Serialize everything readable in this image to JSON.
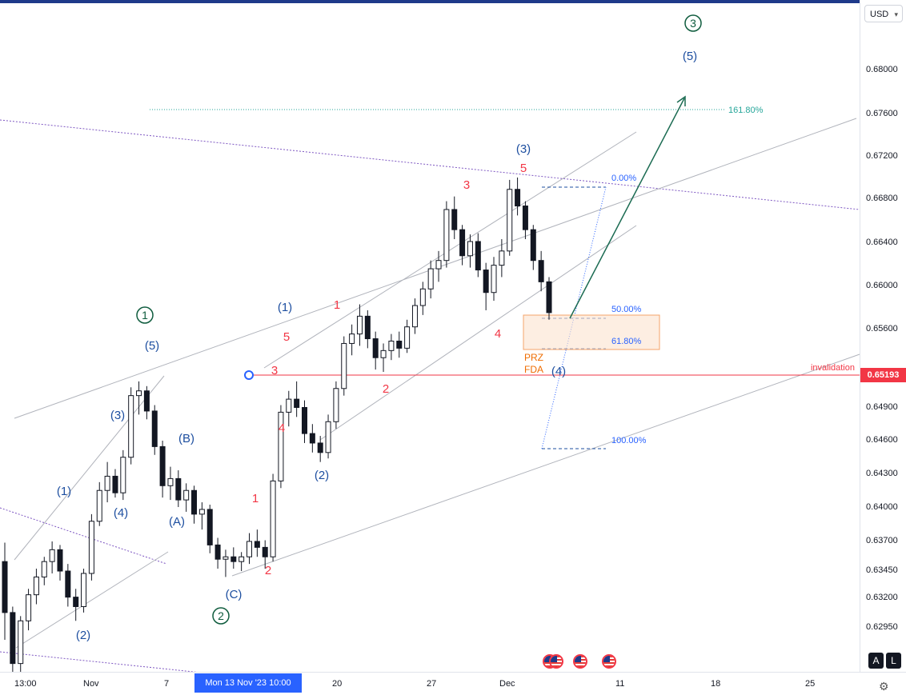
{
  "header": {
    "currency": "USD"
  },
  "price_axis": {
    "ticks": [
      "0.68000",
      "0.67600",
      "0.67200",
      "0.66800",
      "0.66400",
      "0.66000",
      "0.65600",
      "0.64900",
      "0.64600",
      "0.64300",
      "0.64000",
      "0.63700",
      "0.63450",
      "0.63200",
      "0.62950"
    ],
    "current_price": "0.65193"
  },
  "time_axis": {
    "ticks": [
      "13:00",
      "Nov",
      "7",
      "20",
      "27",
      "Dec",
      "11",
      "18",
      "25"
    ],
    "crosshair_label": "Mon 13 Nov '23   10:00"
  },
  "buttons": {
    "auto": "A",
    "log": "L"
  },
  "colors": {
    "up": "#131722",
    "down": "#131722",
    "wave_blue": "#1e4fa0",
    "wave_red": "#f23645",
    "wave_green": "#0f5c3e",
    "invalidation": "#f23645",
    "fib": "#2962ff",
    "prz": "#ef6c00"
  },
  "annotations": {
    "fib_161": "161.80%",
    "fib_0": "0.00%",
    "fib_50": "50.00%",
    "fib_618": "61.80%",
    "fib_100": "100.00%",
    "prz": "PRZ",
    "fda": "FDA",
    "invalidation": "invalidation"
  },
  "waves": {
    "c1": "1",
    "c2": "2",
    "c3": "3",
    "b5_top": "(5)",
    "b3_top": "(3)",
    "b4_main": "(4)",
    "b1_main": "(1)",
    "b2_main": "(2)",
    "b5_left": "(5)",
    "b3_left": "(3)",
    "b4_left": "(4)",
    "b1_left": "(1)",
    "b2_left": "(2)",
    "bB": "(B)",
    "bA": "(A)",
    "bC": "(C)",
    "r1a": "1",
    "r2a": "2",
    "r3a": "3",
    "r4a": "4",
    "r5a": "5",
    "r1b": "1",
    "r2b": "2",
    "r3b": "3",
    "r4b": "4",
    "r5b": "5"
  },
  "chart_data": {
    "type": "candlestick",
    "title": "",
    "ylim": [
      0.6275,
      0.6835
    ],
    "x_ticks": [
      "13:00",
      "Nov",
      "7",
      "20",
      "27",
      "Dec",
      "11",
      "18",
      "25"
    ],
    "close_path": [
      [
        0.6368,
        0.6384,
        0.6302,
        0.6325
      ],
      [
        0.6325,
        0.633,
        0.6264,
        0.6282
      ],
      [
        0.6282,
        0.6322,
        0.6272,
        0.6318
      ],
      [
        0.6318,
        0.6345,
        0.631,
        0.634
      ],
      [
        0.634,
        0.6362,
        0.6332,
        0.6355
      ],
      [
        0.6355,
        0.6372,
        0.6348,
        0.6368
      ],
      [
        0.6368,
        0.6385,
        0.6358,
        0.6378
      ],
      [
        0.6378,
        0.6382,
        0.6352,
        0.636
      ],
      [
        0.636,
        0.6366,
        0.633,
        0.6338
      ],
      [
        0.6338,
        0.6345,
        0.6318,
        0.633
      ],
      [
        0.633,
        0.6362,
        0.6325,
        0.6358
      ],
      [
        0.6358,
        0.6408,
        0.6352,
        0.6402
      ],
      [
        0.6402,
        0.6435,
        0.6398,
        0.6428
      ],
      [
        0.6428,
        0.6452,
        0.6418,
        0.644
      ],
      [
        0.644,
        0.6446,
        0.6422,
        0.6426
      ],
      [
        0.6426,
        0.6462,
        0.642,
        0.6456
      ],
      [
        0.6456,
        0.6515,
        0.645,
        0.6508
      ],
      [
        0.6508,
        0.652,
        0.6492,
        0.6512
      ],
      [
        0.6512,
        0.6516,
        0.6488,
        0.6495
      ],
      [
        0.6495,
        0.65,
        0.6458,
        0.6465
      ],
      [
        0.6465,
        0.647,
        0.6422,
        0.6432
      ],
      [
        0.6432,
        0.6448,
        0.642,
        0.6438
      ],
      [
        0.6438,
        0.6445,
        0.6414,
        0.642
      ],
      [
        0.642,
        0.6434,
        0.641,
        0.6428
      ],
      [
        0.6428,
        0.6432,
        0.64,
        0.6408
      ],
      [
        0.6408,
        0.6418,
        0.6395,
        0.6412
      ],
      [
        0.6412,
        0.6416,
        0.6375,
        0.6382
      ],
      [
        0.6382,
        0.6388,
        0.6362,
        0.637
      ],
      [
        0.637,
        0.6378,
        0.6355,
        0.6372
      ],
      [
        0.6372,
        0.638,
        0.6362,
        0.6368
      ],
      [
        0.6368,
        0.6376,
        0.636,
        0.6372
      ],
      [
        0.6372,
        0.6392,
        0.6366,
        0.6385
      ],
      [
        0.6385,
        0.6395,
        0.6372,
        0.638
      ],
      [
        0.638,
        0.6386,
        0.6362,
        0.6372
      ],
      [
        0.6372,
        0.6442,
        0.6368,
        0.6436
      ],
      [
        0.6436,
        0.65,
        0.643,
        0.6494
      ],
      [
        0.6494,
        0.6512,
        0.6482,
        0.6505
      ],
      [
        0.6505,
        0.652,
        0.649,
        0.6498
      ],
      [
        0.6498,
        0.6504,
        0.6468,
        0.6476
      ],
      [
        0.6476,
        0.6484,
        0.646,
        0.6468
      ],
      [
        0.6468,
        0.6474,
        0.6452,
        0.646
      ],
      [
        0.646,
        0.6492,
        0.6455,
        0.6486
      ],
      [
        0.6486,
        0.652,
        0.648,
        0.6514
      ],
      [
        0.6514,
        0.6558,
        0.6508,
        0.6552
      ],
      [
        0.6552,
        0.6568,
        0.6542,
        0.656
      ],
      [
        0.656,
        0.6585,
        0.655,
        0.6575
      ],
      [
        0.6575,
        0.658,
        0.6548,
        0.6556
      ],
      [
        0.6556,
        0.6562,
        0.653,
        0.654
      ],
      [
        0.654,
        0.6552,
        0.6528,
        0.6546
      ],
      [
        0.6546,
        0.656,
        0.6538,
        0.6554
      ],
      [
        0.6554,
        0.6562,
        0.654,
        0.6548
      ],
      [
        0.6548,
        0.6572,
        0.6544,
        0.6566
      ],
      [
        0.6566,
        0.659,
        0.656,
        0.6584
      ],
      [
        0.6584,
        0.6604,
        0.6576,
        0.6598
      ],
      [
        0.6598,
        0.6622,
        0.659,
        0.6615
      ],
      [
        0.6615,
        0.663,
        0.6604,
        0.6622
      ],
      [
        0.6622,
        0.6672,
        0.6616,
        0.6665
      ],
      [
        0.6665,
        0.6676,
        0.664,
        0.6648
      ],
      [
        0.6648,
        0.6652,
        0.6618,
        0.6626
      ],
      [
        0.6626,
        0.6644,
        0.6616,
        0.6638
      ],
      [
        0.6638,
        0.6645,
        0.6608,
        0.6614
      ],
      [
        0.6614,
        0.662,
        0.658,
        0.6595
      ],
      [
        0.6595,
        0.6625,
        0.6588,
        0.6618
      ],
      [
        0.6618,
        0.664,
        0.6608,
        0.663
      ],
      [
        0.663,
        0.669,
        0.6626,
        0.6682
      ],
      [
        0.6682,
        0.6692,
        0.666,
        0.6668
      ],
      [
        0.6668,
        0.6672,
        0.664,
        0.6648
      ],
      [
        0.6648,
        0.6652,
        0.6614,
        0.6622
      ],
      [
        0.6622,
        0.663,
        0.6596,
        0.6604
      ],
      [
        0.6604,
        0.6608,
        0.6572,
        0.6578
      ]
    ]
  }
}
